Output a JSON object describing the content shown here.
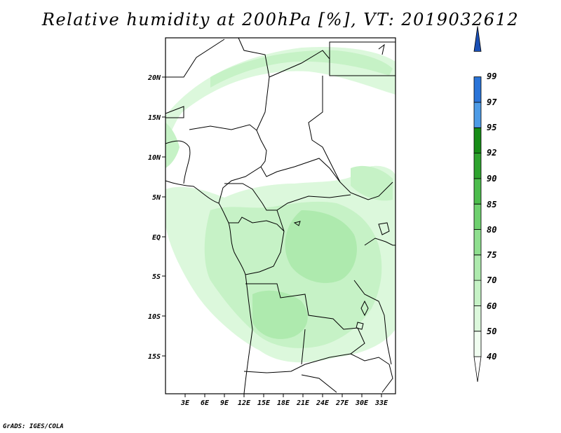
{
  "title": "Relative humidity at 200hPa [%], VT: 2019032612",
  "credit": "GrADS: IGES/COLA",
  "map": {
    "lon_labels": [
      "3E",
      "6E",
      "9E",
      "12E",
      "15E",
      "18E",
      "21E",
      "24E",
      "27E",
      "30E",
      "33E"
    ],
    "lat_labels": [
      "20N",
      "15N",
      "10N",
      "5N",
      "EQ",
      "5S",
      "10S",
      "15S"
    ]
  },
  "colorbar": {
    "levels": [
      "40",
      "50",
      "60",
      "70",
      "75",
      "80",
      "85",
      "90",
      "92",
      "95",
      "97",
      "99"
    ],
    "colors": [
      "#ffffff",
      "#f0fdf0",
      "#dcf8dc",
      "#c6f2c6",
      "#aeeaae",
      "#8fdf8f",
      "#6ed06e",
      "#4cbc4c",
      "#2ea32e",
      "#168c16",
      "#4d9be6",
      "#2a74d8",
      "#1a4fb5"
    ]
  }
}
